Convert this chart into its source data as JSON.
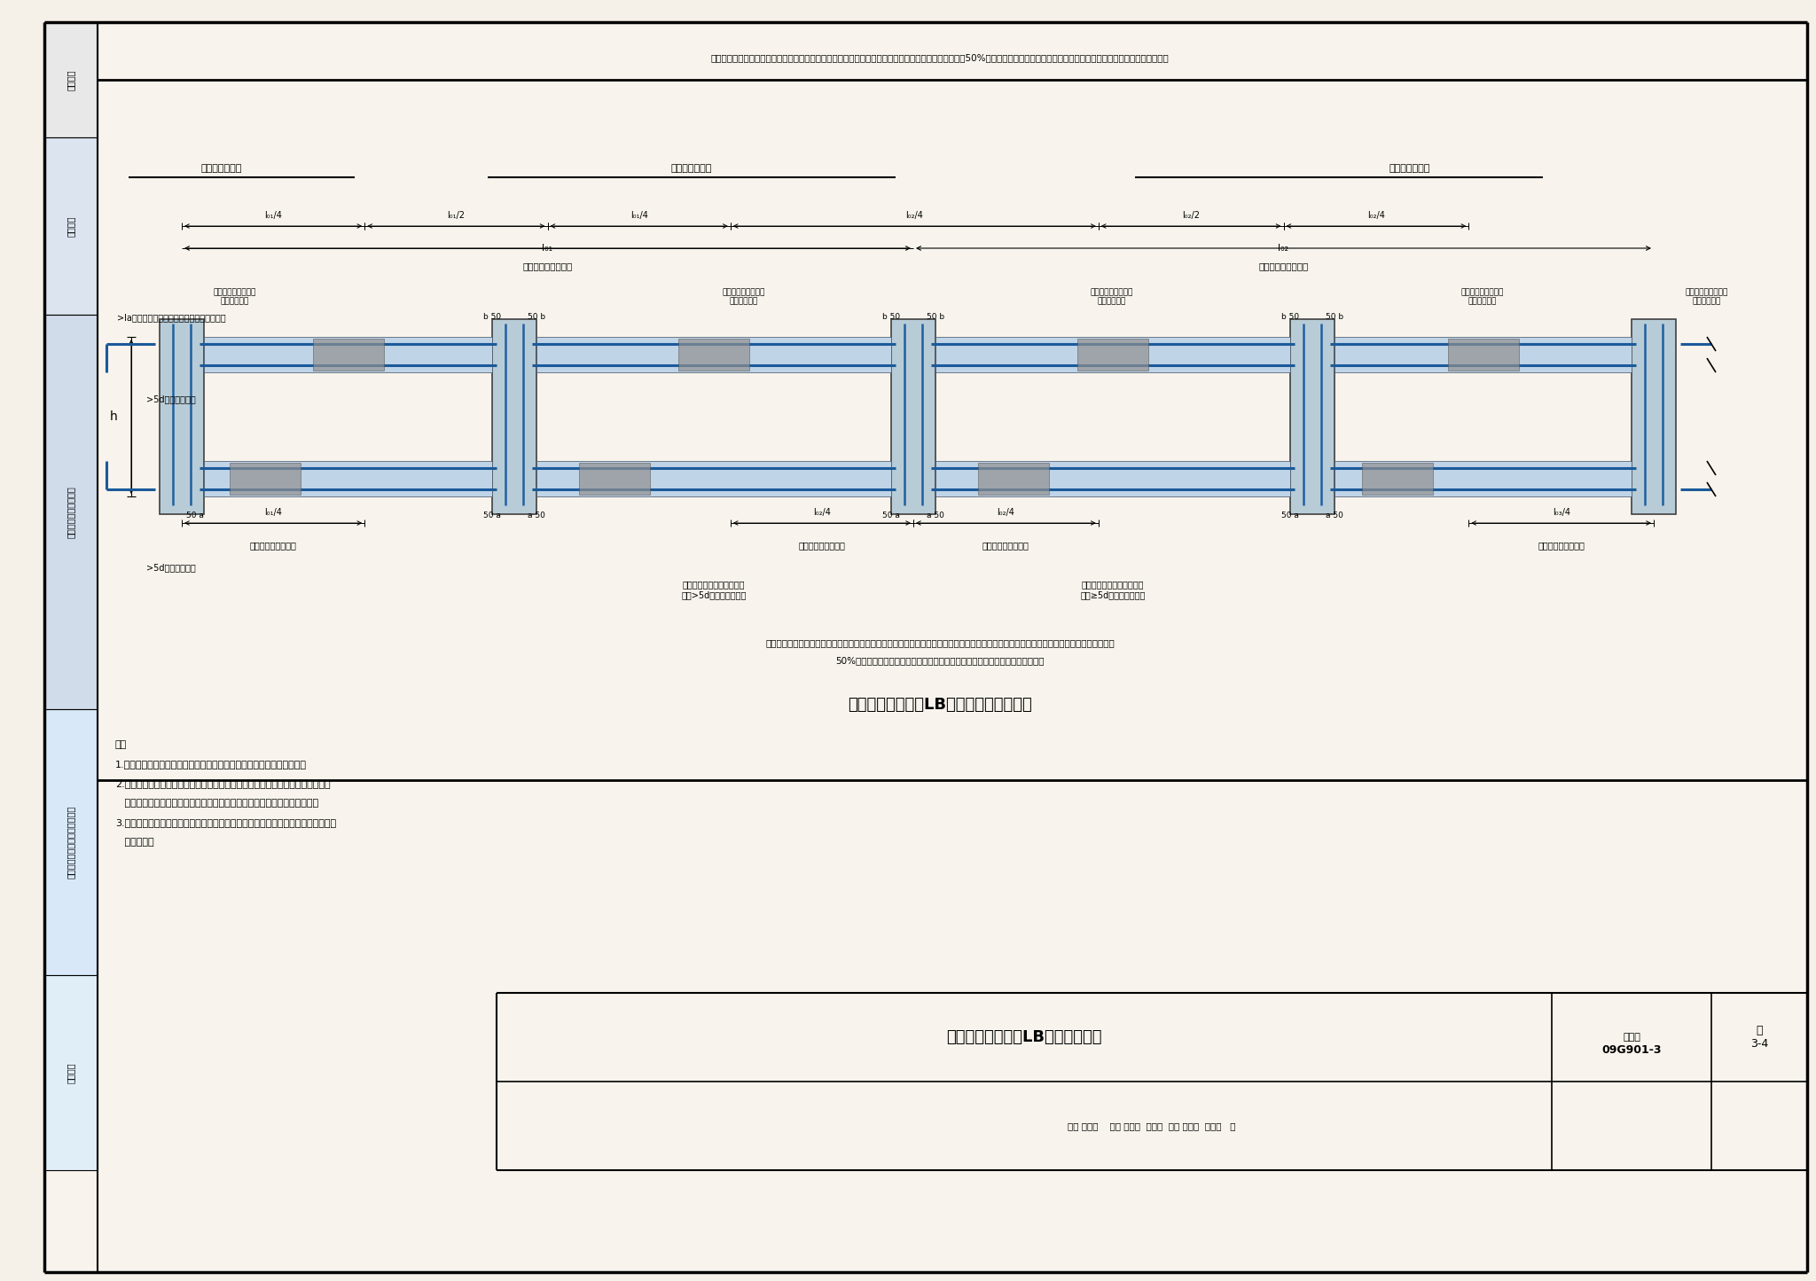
{
  "bg_color": "#f5f0e8",
  "border_color": "#1a1a1a",
  "blue_color": "#2060a0",
  "dark_blue": "#104080",
  "gray_color": "#888888",
  "steel_color": "#4080c0",
  "title_main": "箱形基础中层楼板LB钢筋排布构造",
  "title_sub": "箱形基础中层楼板LB钢筋排布构造（一）",
  "fig_num": "09G901-3",
  "page": "3-4",
  "top_note": "顶部贯通钢筋，在连接区段内采用搭接、机械连接或对焊连接，同一连接区段内接头面积百分率不应大于50%，当钢筋长度可穿过一连接区到下一连接区并满足连接要求时，宜穿越设置",
  "bottom_note": "底部贯通钢筋，可锚入墙支座，也在连接区段内采用搭接、机械连接或对焊连接，当在连接区连接时，同一连接区段内接头面积百分率不应大于\n50%，当钢筋长度可以穿过一连接区到下一连接区并满足连接要求时，宜穿越设置",
  "notes": [
    "注：",
    "1.底部与顶部贯通纵筋在连接区的连接方式，应满足本图集的相应要求。",
    "2.当两毗邻的顶部贯通纵筋配置不同时，应将配置较大一跨的底部贯通纵筋越过其",
    "   标注的跨数终点或起点，延伸至配置较小的毗邻跨的跨中连接区进行连接。",
    "3.箱形基础顶板同一层面的交叉钢筋何筋在上由设计具体说明。当设计无说明时，由",
    "   施工确定。"
  ],
  "side_labels": [
    "一般规定",
    "筏形基础",
    "箱形基础和地下室结构",
    "箱形基础、条形基础、独立基础",
    "桩基承台"
  ],
  "review_row": "审核 黄志刚    校对 张工文  张之义  设计 王怀元  叶欣之   页"
}
